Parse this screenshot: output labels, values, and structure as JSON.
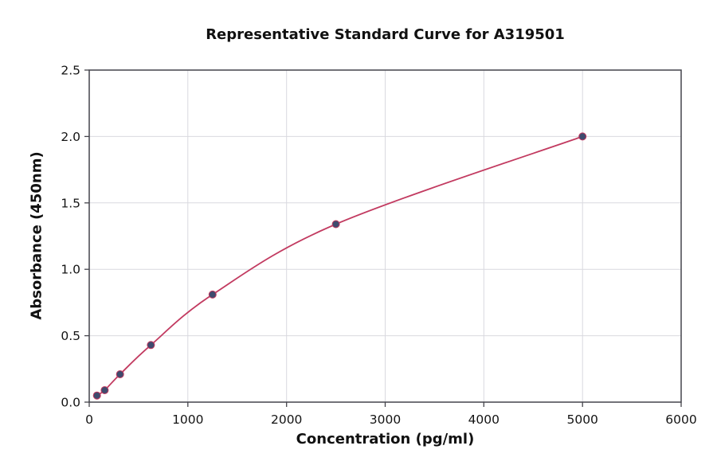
{
  "chart_data": {
    "type": "line",
    "title": "Representative Standard Curve for A319501",
    "xlabel": "Concentration (pg/ml)",
    "ylabel": "Absorbance (450nm)",
    "x": [
      78.1,
      156.3,
      312.5,
      625,
      1250,
      2500,
      5000
    ],
    "y": [
      0.05,
      0.09,
      0.21,
      0.43,
      0.81,
      1.34,
      2.0
    ],
    "xlim": [
      0,
      6000
    ],
    "ylim": [
      0,
      2.5
    ],
    "x_ticks": [
      0,
      1000,
      2000,
      3000,
      4000,
      5000,
      6000
    ],
    "y_ticks": [
      0.0,
      0.5,
      1.0,
      1.5,
      2.0,
      2.5
    ],
    "grid": true,
    "legend": "none",
    "line_color": "#c23a60",
    "marker_color": "#3f4b6e",
    "grid_color": "#d9d9df",
    "axis_color": "#44444c",
    "text_color": "#141414"
  }
}
